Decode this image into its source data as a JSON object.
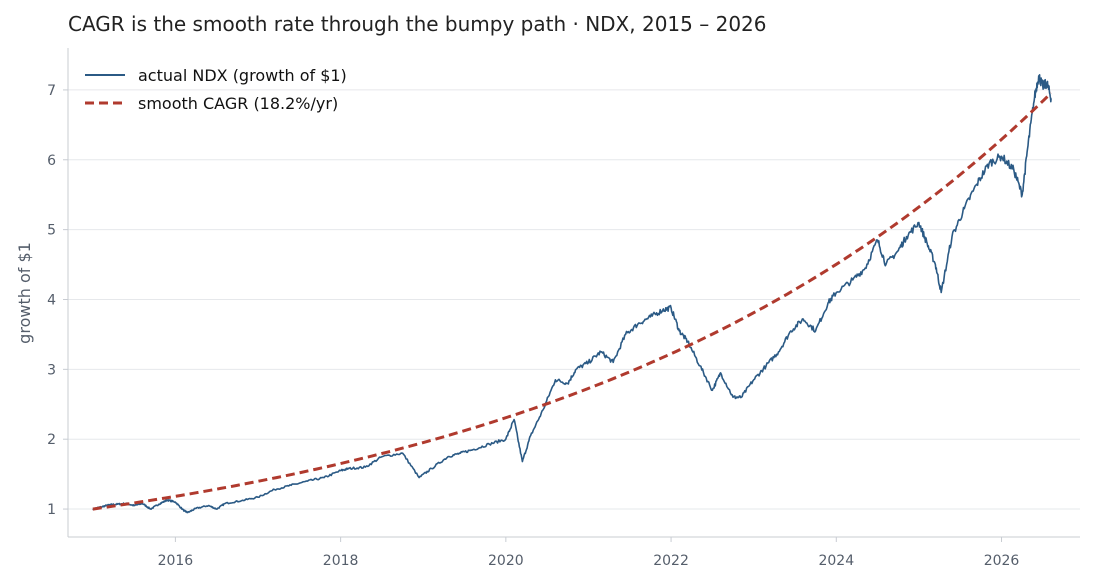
{
  "chart_data": {
    "type": "line",
    "title": "CAGR is the smooth rate through the bumpy path  ·  NDX, 2015 – 2026",
    "xlabel": "",
    "ylabel": "growth of $1",
    "xlim": [
      2014.7,
      2026.95
    ],
    "ylim": [
      0.6,
      7.6
    ],
    "x_ticks": [
      2016,
      2018,
      2020,
      2022,
      2024,
      2026
    ],
    "x_tick_labels": [
      "2016",
      "2018",
      "2020",
      "2022",
      "2024",
      "2026"
    ],
    "y_ticks": [
      1,
      2,
      3,
      4,
      5,
      6,
      7
    ],
    "y_tick_labels": [
      "1",
      "2",
      "3",
      "4",
      "5",
      "6",
      "7"
    ],
    "grid": "horizontal",
    "legend_position": "top-left",
    "series": [
      {
        "name": "actual NDX (growth of $1)",
        "color": "#2b5a85",
        "style": "solid",
        "x": [
          2015.0,
          2015.1,
          2015.2,
          2015.3,
          2015.4,
          2015.5,
          2015.6,
          2015.7,
          2015.8,
          2015.9,
          2016.0,
          2016.1,
          2016.15,
          2016.25,
          2016.4,
          2016.5,
          2016.6,
          2016.8,
          2017.0,
          2017.2,
          2017.4,
          2017.6,
          2017.8,
          2018.0,
          2018.1,
          2018.3,
          2018.5,
          2018.75,
          2018.95,
          2019.1,
          2019.3,
          2019.45,
          2019.6,
          2019.8,
          2020.0,
          2020.1,
          2020.2,
          2020.3,
          2020.45,
          2020.6,
          2020.75,
          2020.85,
          2021.0,
          2021.15,
          2021.3,
          2021.45,
          2021.6,
          2021.75,
          2021.9,
          2022.0,
          2022.1,
          2022.2,
          2022.35,
          2022.5,
          2022.6,
          2022.75,
          2022.85,
          2023.0,
          2023.15,
          2023.3,
          2023.45,
          2023.6,
          2023.75,
          2023.9,
          2024.0,
          2024.2,
          2024.35,
          2024.5,
          2024.6,
          2024.75,
          2024.85,
          2025.0,
          2025.1,
          2025.2,
          2025.27,
          2025.4,
          2025.55,
          2025.7,
          2025.85,
          2026.0,
          2026.15,
          2026.25,
          2026.32,
          2026.4,
          2026.45,
          2026.5,
          2026.55,
          2026.6
        ],
        "y": [
          1.0,
          1.03,
          1.06,
          1.07,
          1.08,
          1.05,
          1.08,
          1.0,
          1.07,
          1.13,
          1.1,
          0.98,
          0.95,
          1.01,
          1.05,
          1.0,
          1.08,
          1.12,
          1.17,
          1.28,
          1.34,
          1.4,
          1.45,
          1.55,
          1.58,
          1.6,
          1.75,
          1.8,
          1.45,
          1.58,
          1.75,
          1.8,
          1.85,
          1.93,
          2.0,
          2.28,
          1.68,
          2.05,
          2.42,
          2.85,
          2.8,
          3.0,
          3.1,
          3.25,
          3.1,
          3.5,
          3.65,
          3.75,
          3.85,
          3.88,
          3.55,
          3.4,
          3.05,
          2.7,
          2.95,
          2.6,
          2.6,
          2.85,
          3.05,
          3.25,
          3.55,
          3.72,
          3.55,
          3.95,
          4.1,
          4.28,
          4.45,
          4.85,
          4.5,
          4.7,
          4.9,
          5.1,
          4.8,
          4.5,
          4.1,
          4.9,
          5.3,
          5.65,
          5.95,
          6.05,
          5.85,
          5.5,
          6.2,
          6.9,
          7.2,
          7.05,
          7.1,
          6.88
        ]
      },
      {
        "name": "smooth CAGR (18.2%/yr)",
        "color": "#b03a2e",
        "style": "dashed",
        "growth_rate": 0.182,
        "x_start": 2015.0,
        "x_end": 2026.6,
        "y_start": 1.0
      }
    ]
  }
}
